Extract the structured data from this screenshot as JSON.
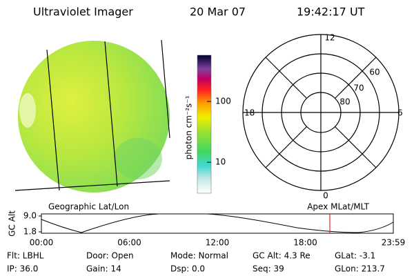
{
  "header": {
    "instrument": "Ultraviolet Imager",
    "date": "20 Mar 07",
    "time": "19:42:17 UT"
  },
  "colorbar": {
    "label": "photon cm⁻²s⁻¹",
    "scale": "log",
    "lim": [
      3.1,
      577
    ],
    "ticks": [
      10,
      100
    ]
  },
  "dial": {
    "hours": [
      "12",
      "18",
      "6",
      "0"
    ],
    "latitudes": [
      "80",
      "70",
      "60"
    ]
  },
  "altitude_plot": {
    "left_title": "Geographic Lat/Lon",
    "right_title": "Apex MLat/MLT",
    "ylabel": "GC Alt",
    "yticks": [
      {
        "value": 9.0,
        "label": "9.0"
      },
      {
        "value": 1.8,
        "label": "1.8"
      }
    ],
    "xlabels": [
      "00:00",
      "06:00",
      "12:00",
      "18:00",
      "23:59"
    ]
  },
  "info": [
    [
      "Flt: LBHL",
      "Door: Open",
      "Mode: Normal",
      "GC Alt: 4.3 Re",
      "GLat: -3.1"
    ],
    [
      "IP: 36.0",
      "Gain: 14",
      "Dsp: 0.0",
      "Seq: 39",
      "GLon: 213.7"
    ]
  ]
}
